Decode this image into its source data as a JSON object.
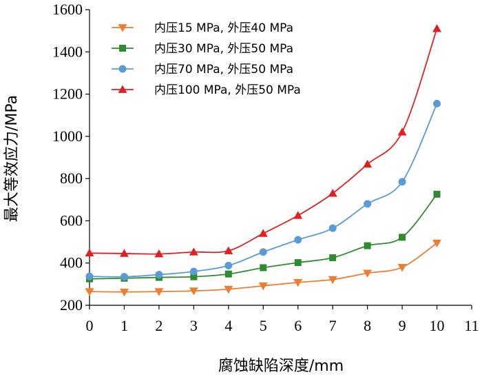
{
  "chart_data": {
    "type": "line",
    "xlabel": "腐蚀缺陷深度/mm",
    "ylabel": "最大等效应力/MPa",
    "xlim": [
      0,
      11
    ],
    "ylim": [
      200,
      1600
    ],
    "xticks": [
      0,
      1,
      2,
      3,
      4,
      5,
      6,
      7,
      8,
      9,
      10,
      11
    ],
    "yticks": [
      200,
      400,
      600,
      800,
      1000,
      1200,
      1400,
      1600
    ],
    "grid": false,
    "legend_position": "top-left",
    "x": [
      0,
      1,
      2,
      3,
      4,
      5,
      6,
      7,
      8,
      9,
      10
    ],
    "series": [
      {
        "name": "内压15 MPa, 外压40 MPa",
        "color": "#ED7D31",
        "marker": "triangle-down",
        "values": [
          265,
          263,
          265,
          268,
          276,
          292,
          308,
          322,
          352,
          380,
          495
        ]
      },
      {
        "name": "内压30 MPa, 外压50 MPa",
        "color": "#2E8B2E",
        "marker": "square",
        "values": [
          325,
          328,
          332,
          335,
          348,
          378,
          402,
          425,
          482,
          522,
          726
        ]
      },
      {
        "name": "内压70 MPa, 外压50 MPa",
        "color": "#5B9BD5",
        "marker": "circle",
        "values": [
          337,
          335,
          345,
          360,
          388,
          452,
          510,
          565,
          680,
          785,
          1155
        ]
      },
      {
        "name": "内压100 MPa, 外压50 MPa",
        "color": "#E02020",
        "marker": "triangle-up",
        "values": [
          447,
          445,
          443,
          452,
          458,
          540,
          625,
          730,
          868,
          1020,
          1510
        ]
      }
    ]
  }
}
